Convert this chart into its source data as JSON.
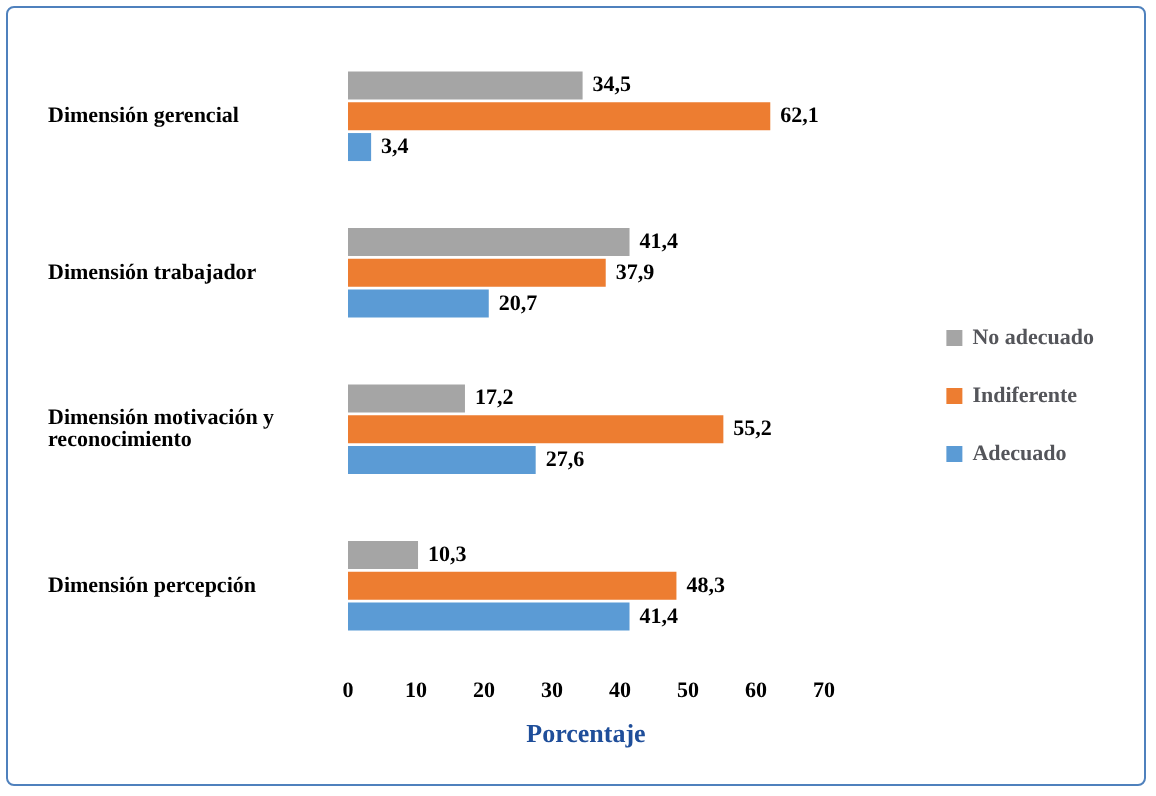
{
  "chart_data": {
    "type": "bar",
    "orientation": "horizontal",
    "xlabel": "Porcentaje",
    "categories": [
      "Dimensión gerencial",
      "Dimensión trabajador",
      "Dimensión motivación y reconocimiento",
      "Dimensión percepción"
    ],
    "series": [
      {
        "name": "No adecuado",
        "color": "#a5a5a5",
        "values": [
          34.5,
          41.4,
          17.2,
          10.3
        ],
        "value_labels": [
          "34,5",
          "41,4",
          "17,2",
          "10,3"
        ]
      },
      {
        "name": "Indiferente",
        "color": "#ed7d31",
        "values": [
          62.1,
          37.9,
          55.2,
          48.3
        ],
        "value_labels": [
          "62,1",
          "37,9",
          "55,2",
          "48,3"
        ]
      },
      {
        "name": "Adecuado",
        "color": "#5b9bd5",
        "values": [
          3.4,
          20.7,
          27.6,
          41.4
        ],
        "value_labels": [
          "3,4",
          "20,7",
          "27,6",
          "41,4"
        ]
      }
    ],
    "xlim": [
      0,
      70
    ],
    "xticks": [
      0,
      10,
      20,
      30,
      40,
      50,
      60,
      70
    ],
    "grid": false,
    "legend": "right"
  }
}
